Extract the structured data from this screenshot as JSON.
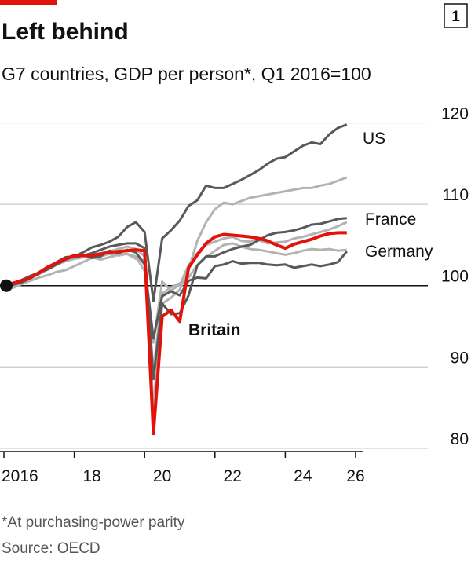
{
  "chart_data": {
    "type": "line",
    "title": "Left behind",
    "chart_number": "1",
    "subtitle": "G7 countries, GDP per person*, Q1 2016=100",
    "footnote": "*At purchasing-power parity",
    "source": "Source: OECD",
    "x": [
      2016,
      2016.25,
      2016.5,
      2016.75,
      2017,
      2017.25,
      2017.5,
      2017.75,
      2018,
      2018.25,
      2018.5,
      2018.75,
      2019,
      2019.25,
      2019.5,
      2019.75,
      2020,
      2020.25,
      2020.5,
      2020.75,
      2021,
      2021.25,
      2021.5,
      2021.75,
      2022,
      2022.25,
      2022.5,
      2022.75,
      2023,
      2023.25,
      2023.5,
      2023.75,
      2024,
      2024.25,
      2024.5,
      2024.75,
      2025,
      2025.25,
      2025.5,
      2025.75
    ],
    "series": [
      {
        "color": "#b3b3b3",
        "values": [
          100,
          100.3,
          100.6,
          101.0,
          101.4,
          102.0,
          102.6,
          103.0,
          103.3,
          103.5,
          103.8,
          104.0,
          104.2,
          104.5,
          104.8,
          104.5,
          103.6,
          85.0,
          97.8,
          98.5,
          99.5,
          102.0,
          105.5,
          107.8,
          109.4,
          110.2,
          110.0,
          110.4,
          110.8,
          111.0,
          111.2,
          111.4,
          111.6,
          111.8,
          112.0,
          112.0,
          112.3,
          112.5,
          112.9,
          113.3
        ]
      },
      {
        "color": "#b3b3b3",
        "values": [
          99.7,
          99.9,
          100.3,
          100.9,
          101.6,
          102.3,
          102.9,
          103.3,
          103.3,
          103.5,
          103.5,
          103.2,
          103.5,
          103.8,
          103.9,
          103.6,
          101.8,
          93.0,
          100.5,
          99.4,
          100.1,
          102.5,
          104.0,
          105.0,
          105.4,
          105.8,
          106.0,
          105.5,
          105.4,
          105.6,
          105.2,
          105.3,
          105.4,
          105.8,
          106.0,
          106.3,
          106.6,
          106.9,
          107.3,
          107.8
        ]
      },
      {
        "color": "#b3b3b3",
        "values": [
          99.6,
          99.7,
          100.2,
          100.6,
          101.0,
          101.3,
          101.7,
          101.9,
          102.4,
          102.9,
          103.4,
          103.6,
          103.9,
          103.7,
          103.9,
          103.3,
          103.1,
          89.5,
          99.0,
          99.8,
          100.3,
          101.0,
          102.5,
          103.5,
          104.3,
          105.0,
          105.2,
          104.8,
          104.5,
          104.4,
          104.2,
          104.0,
          103.8,
          104.0,
          104.3,
          104.5,
          104.4,
          104.5,
          104.3,
          104.4
        ]
      },
      {
        "name": "US",
        "color": "#595959",
        "values": [
          100,
          100.3,
          100.7,
          101.2,
          101.6,
          102.0,
          102.6,
          103.2,
          103.6,
          104.1,
          104.7,
          105.0,
          105.4,
          106.0,
          107.2,
          107.8,
          106.6,
          98.1,
          105.8,
          106.8,
          108.0,
          109.8,
          110.5,
          112.3,
          112.0,
          112.0,
          112.5,
          113.0,
          113.6,
          114.2,
          115.0,
          115.6,
          115.8,
          116.5,
          117.2,
          117.6,
          117.4,
          118.6,
          119.4,
          119.8
        ]
      },
      {
        "name": "France",
        "color": "#595959",
        "values": [
          100,
          100.1,
          100.4,
          100.9,
          101.5,
          102.2,
          102.8,
          103.4,
          103.5,
          103.7,
          104.0,
          104.4,
          104.8,
          105.0,
          105.2,
          105.2,
          104.6,
          88.5,
          97.8,
          96.5,
          96.6,
          98.8,
          102.5,
          103.6,
          103.6,
          104.1,
          104.5,
          104.8,
          105.0,
          105.6,
          106.2,
          106.5,
          106.6,
          106.8,
          107.1,
          107.5,
          107.6,
          107.9,
          108.2,
          108.3
        ]
      },
      {
        "name": "Germany",
        "color": "#595959",
        "values": [
          100,
          100.2,
          100.5,
          100.9,
          101.6,
          102.2,
          102.9,
          103.5,
          103.6,
          103.8,
          103.4,
          103.6,
          104.3,
          104.0,
          104.4,
          104.1,
          102.6,
          93.5,
          98.7,
          99.3,
          98.8,
          100.6,
          101.0,
          100.9,
          102.4,
          102.6,
          103.0,
          102.7,
          102.8,
          102.8,
          102.6,
          102.5,
          102.6,
          102.2,
          102.4,
          102.6,
          102.4,
          102.6,
          102.9,
          104.2
        ]
      },
      {
        "name": "Britain",
        "color": "#e3120b",
        "values": [
          100,
          100.3,
          100.6,
          101.0,
          101.6,
          102.3,
          102.8,
          103.3,
          103.7,
          103.7,
          103.7,
          103.9,
          104.1,
          104.2,
          104.3,
          104.4,
          104.3,
          81.8,
          96.2,
          97.0,
          95.6,
          102.2,
          103.8,
          105.2,
          106.0,
          106.3,
          106.2,
          106.1,
          106.0,
          105.8,
          105.5,
          105.0,
          104.6,
          105.1,
          105.4,
          105.7,
          106.1,
          106.4,
          106.5,
          106.5
        ]
      }
    ],
    "xlim": [
      2016,
      2026
    ],
    "ylim": [
      79.6,
      121.6
    ],
    "xticks": [
      2016,
      {
        "value": 2018,
        "label": "18"
      },
      {
        "value": 2020,
        "label": "20"
      },
      {
        "value": 2022,
        "label": "22"
      },
      {
        "value": 2024,
        "label": "24"
      },
      {
        "value": 2026,
        "label": "26"
      }
    ],
    "yticks": [
      80,
      90,
      100,
      110,
      120
    ],
    "grid": true
  }
}
